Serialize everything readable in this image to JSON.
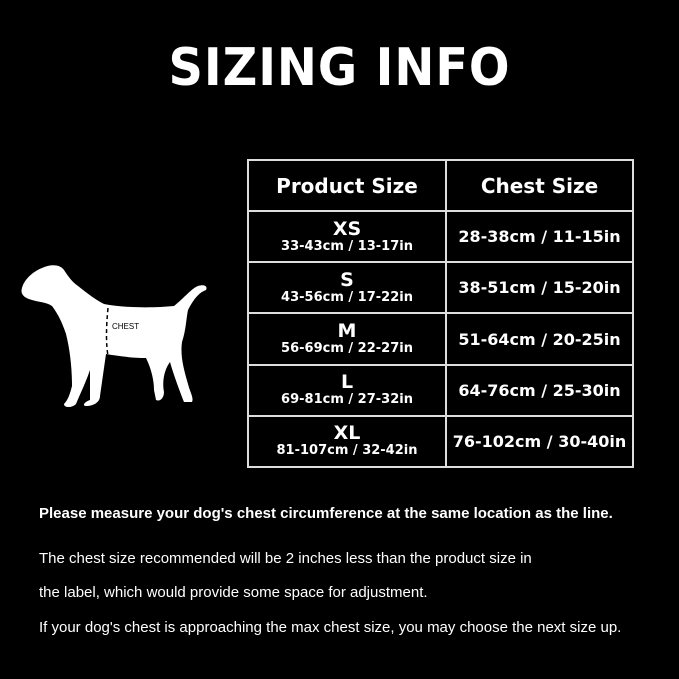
{
  "title": "SIZING INFO",
  "dog_label": "CHEST",
  "table": {
    "headers": [
      "Product Size",
      "Chest Size"
    ],
    "rows": [
      {
        "size": "XS",
        "product_range": "33-43cm / 13-17in",
        "chest": "28-38cm / 11-15in"
      },
      {
        "size": "S",
        "product_range": "43-56cm / 17-22in",
        "chest": "38-51cm / 15-20in"
      },
      {
        "size": "M",
        "product_range": "56-69cm / 22-27in",
        "chest": "51-64cm / 20-25in"
      },
      {
        "size": "L",
        "product_range": "69-81cm / 27-32in",
        "chest": "64-76cm / 25-30in"
      },
      {
        "size": "XL",
        "product_range": "81-107cm / 32-42in",
        "chest": "76-102cm / 30-40in"
      }
    ]
  },
  "notes": [
    "Please measure your dog's chest circumference at the same location as the line.",
    "The chest size recommended will be 2 inches less than the product size in",
    "the label, which would provide some space for adjustment.",
    "If your dog's chest is approaching the max chest size, you may choose the next size up."
  ]
}
